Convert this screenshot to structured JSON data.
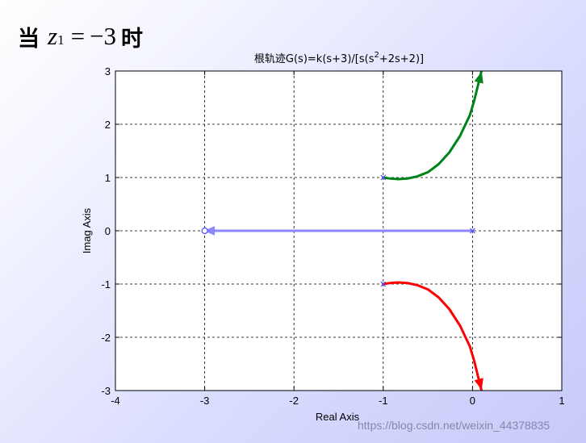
{
  "heading": {
    "prefix": "当",
    "var": "z",
    "sub": "1",
    "eq": "=",
    "value": "−3",
    "suffix": "时"
  },
  "watermark": "https://blog.csdn.net/weixin_44378835",
  "chart_data": {
    "type": "line",
    "title": "根轨迹G(s)=k(s+3)/[s(s^2+2s+2)]",
    "title_parts": {
      "main": "根轨迹G(s)=k(s+3)/[s(s",
      "sup": "2",
      "rest": "+2s+2)]"
    },
    "xlabel": "Real Axis",
    "ylabel": "Imag Axis",
    "xlim": [
      -4,
      1
    ],
    "ylim": [
      -3,
      3
    ],
    "xticks": [
      -4,
      -3,
      -2,
      -1,
      0,
      1
    ],
    "yticks": [
      -3,
      -2,
      -1,
      0,
      1,
      2,
      3
    ],
    "xtick_labels": [
      "-4",
      "-3",
      "-2",
      "-1",
      "0",
      "1"
    ],
    "ytick_labels": [
      "-3",
      "-2",
      "-1",
      "0",
      "1",
      "2",
      "3"
    ],
    "grid": true,
    "series": [
      {
        "color": "#00831b",
        "x": [
          -1.0,
          -0.92,
          -0.83,
          -0.73,
          -0.62,
          -0.5,
          -0.38,
          -0.26,
          -0.14,
          -0.03,
          0.02,
          0.06,
          0.1
        ],
        "y": [
          1.0,
          0.98,
          0.97,
          0.98,
          1.02,
          1.1,
          1.25,
          1.47,
          1.78,
          2.17,
          2.45,
          2.72,
          3.0
        ]
      },
      {
        "color": "#8a87ff",
        "x": [
          0.0,
          -0.6,
          -1.2,
          -1.8,
          -2.4,
          -3.0
        ],
        "y": [
          0,
          0,
          0,
          0,
          0,
          0
        ]
      },
      {
        "color": "#ff0000",
        "x": [
          -1.0,
          -0.92,
          -0.83,
          -0.73,
          -0.62,
          -0.5,
          -0.38,
          -0.26,
          -0.14,
          -0.03,
          0.02,
          0.06,
          0.1
        ],
        "y": [
          -1.0,
          -0.98,
          -0.97,
          -0.98,
          -1.02,
          -1.1,
          -1.25,
          -1.47,
          -1.78,
          -2.17,
          -2.45,
          -2.72,
          -3.0
        ]
      }
    ],
    "poles": [
      {
        "x": 0,
        "y": 0
      },
      {
        "x": -1,
        "y": 1
      },
      {
        "x": -1,
        "y": -1
      }
    ],
    "zeros": [
      {
        "x": -3,
        "y": 0
      }
    ]
  }
}
